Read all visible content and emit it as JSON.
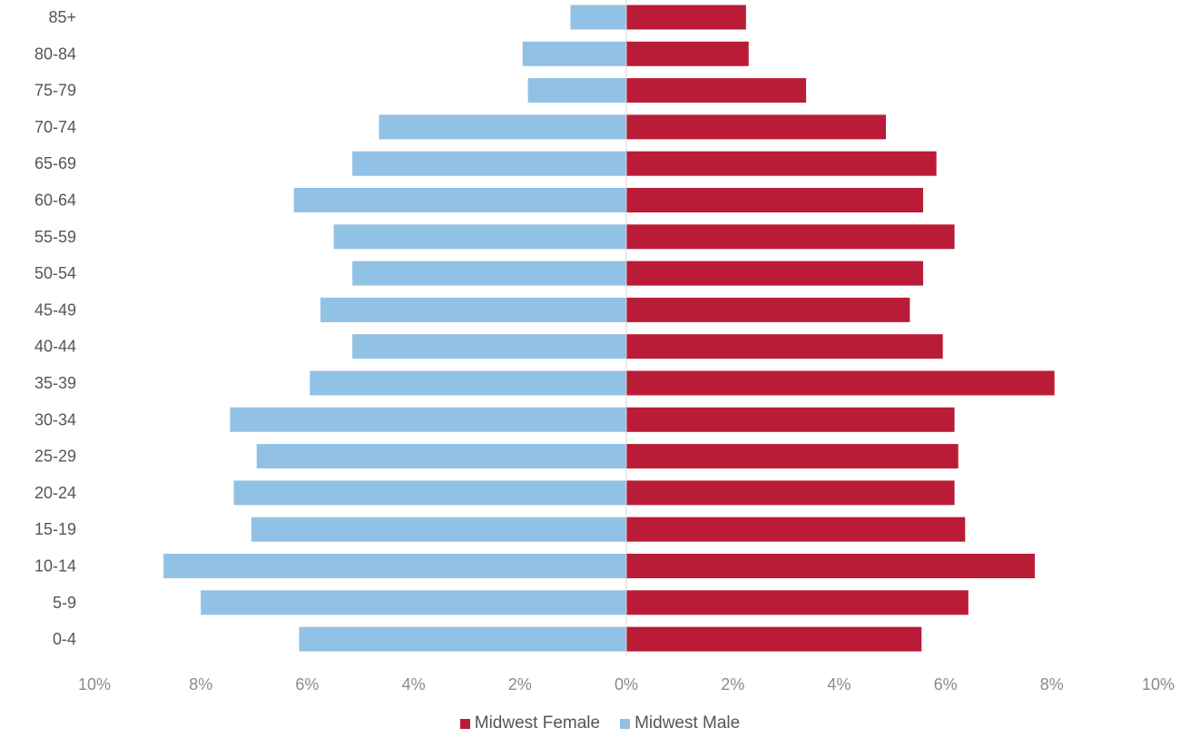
{
  "chart_data": {
    "type": "bar",
    "orientation": "horizontal",
    "categories": [
      "85+",
      "80-84",
      "75-79",
      "70-74",
      "65-69",
      "60-64",
      "55-59",
      "50-54",
      "45-49",
      "40-44",
      "35-39",
      "30-34",
      "25-29",
      "20-24",
      "15-19",
      "10-14",
      "5-9",
      "0-4"
    ],
    "series": [
      {
        "name": "Midwest Male",
        "color": "#92C1E6",
        "values": [
          1.05,
          1.95,
          1.85,
          4.65,
          5.15,
          6.25,
          5.5,
          5.15,
          5.75,
          5.15,
          5.95,
          7.45,
          6.95,
          7.38,
          7.05,
          8.7,
          8.0,
          6.15
        ]
      },
      {
        "name": "Midwest Female",
        "color": "#BA1C37",
        "values": [
          2.25,
          2.3,
          3.38,
          4.88,
          5.83,
          5.58,
          6.17,
          5.58,
          5.33,
          5.95,
          8.05,
          6.17,
          6.24,
          6.17,
          6.37,
          7.68,
          6.43,
          5.55
        ]
      }
    ],
    "xaxis": {
      "range": [
        -10,
        10
      ],
      "ticks": [
        "10%",
        "8%",
        "6%",
        "4%",
        "2%",
        "0%",
        "2%",
        "4%",
        "6%",
        "8%",
        "10%"
      ]
    },
    "legend_position": "bottom",
    "legend": [
      "Midwest Female",
      "Midwest Male"
    ],
    "grid": false
  }
}
